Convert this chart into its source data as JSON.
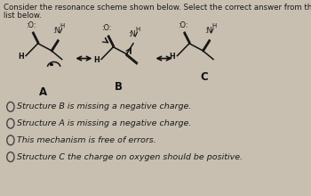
{
  "title_line1": "Consider the resonance scheme shown below. Select the correct answer from the",
  "title_line2": "list below.",
  "title_fontsize": 6.2,
  "bg_color": "#c8bfb0",
  "text_color": "#1a1a1a",
  "mol_color": "#111111",
  "choices": [
    "Structure B is missing a negative charge.",
    "Structure A is missing a negative charge.",
    "This mechanism is free of errors.",
    "Structure C the charge on oxygen should be positive."
  ],
  "choice_fontsize": 6.8,
  "label_fontsize": 8.5,
  "struct_A_label": "A",
  "struct_B_label": "B",
  "struct_C_label": "C"
}
